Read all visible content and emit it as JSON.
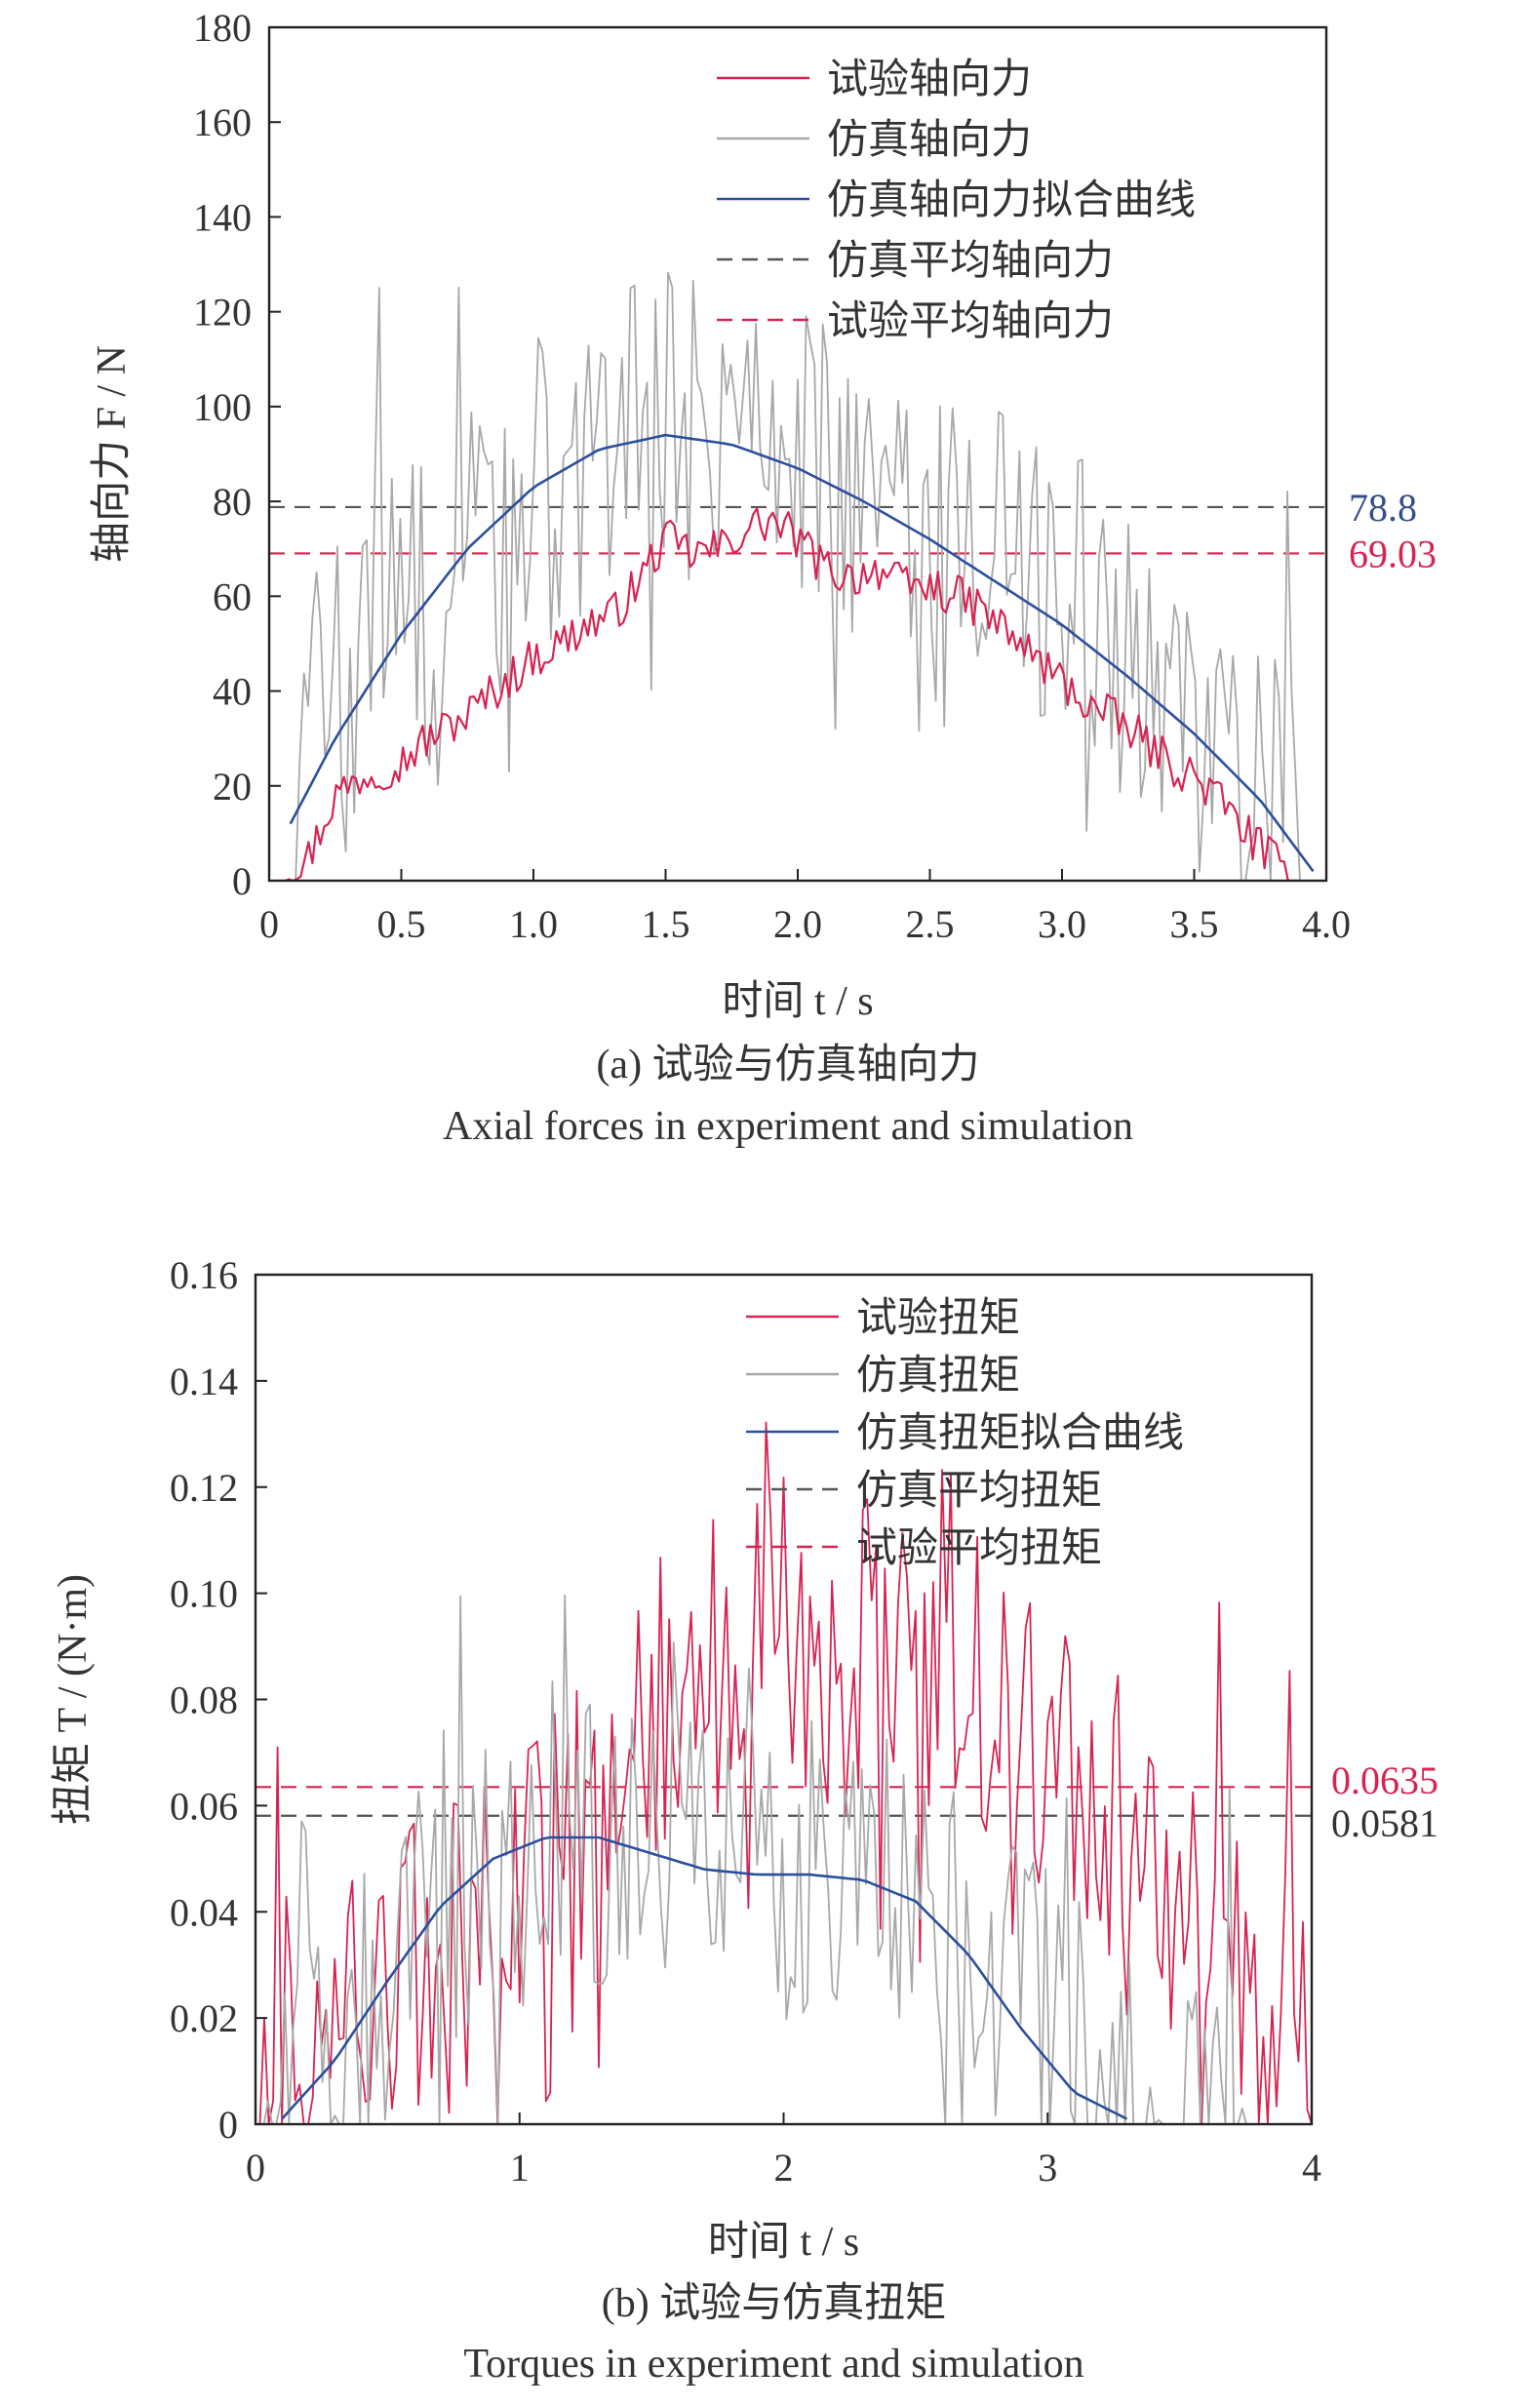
{
  "chart_data": [
    {
      "type": "line",
      "caption_cn": "(a) 试验与仿真轴向力",
      "caption_en": "Axial forces in experiment and simulation",
      "xlabel": "时间 t / s",
      "ylabel": "轴向力 F / N",
      "xlim": [
        0,
        4.0
      ],
      "ylim": [
        0,
        180
      ],
      "xticks": [
        0,
        0.5,
        1.0,
        1.5,
        2.0,
        2.5,
        3.0,
        3.5,
        4.0
      ],
      "xtick_labels": [
        "0",
        "0.5",
        "1.0",
        "1.5",
        "2.0",
        "2.5",
        "3.0",
        "3.5",
        "4.0"
      ],
      "yticks": [
        0,
        20,
        40,
        60,
        80,
        100,
        120,
        140,
        160,
        180
      ],
      "ytick_labels": [
        "0",
        "20",
        "40",
        "60",
        "80",
        "100",
        "120",
        "140",
        "160",
        "180"
      ],
      "legend_position": "top-right",
      "series": [
        {
          "name": "试验轴向力",
          "kind": "noisy",
          "color": "#d62452",
          "x": [
            0.03,
            0.15,
            0.25,
            0.35,
            0.5,
            0.6,
            0.75,
            0.85,
            1.0,
            1.1,
            1.2,
            1.3,
            1.4,
            1.45,
            1.5,
            1.6,
            1.7,
            1.8,
            1.9,
            2.0,
            2.1,
            2.2,
            2.3,
            2.4,
            2.5,
            2.6,
            2.7,
            2.8,
            2.9,
            3.0,
            3.1,
            3.2,
            3.3,
            3.4,
            3.5,
            3.6,
            3.7,
            3.8,
            3.9
          ],
          "values": [
            1,
            5,
            18,
            22,
            25,
            30,
            35,
            40,
            47,
            50,
            54,
            56,
            63,
            68,
            72,
            69,
            70,
            74,
            76,
            72,
            66,
            64,
            66,
            62,
            62,
            60,
            57,
            52,
            47,
            42,
            37,
            34,
            30,
            25,
            22,
            17,
            10,
            4,
            0
          ]
        },
        {
          "name": "仿真轴向力",
          "kind": "spiky",
          "color": "#a8a8a8",
          "x": [
            0.1,
            0.2,
            0.3,
            0.4,
            0.5,
            0.6,
            0.7,
            0.8,
            0.9,
            1.0,
            1.1,
            1.2,
            1.3,
            1.4,
            1.5,
            1.6,
            1.7,
            1.8,
            1.9,
            2.0,
            2.1,
            2.2,
            2.3,
            2.4,
            2.5,
            2.6,
            2.7,
            2.8,
            2.9,
            3.0,
            3.1,
            3.2,
            3.3,
            3.4,
            3.5,
            3.6,
            3.7,
            3.8,
            3.9
          ],
          "values": [
            25,
            45,
            35,
            55,
            60,
            55,
            65,
            75,
            70,
            85,
            75,
            90,
            85,
            95,
            100,
            95,
            90,
            100,
            95,
            95,
            90,
            85,
            80,
            75,
            70,
            70,
            75,
            65,
            60,
            60,
            55,
            50,
            45,
            40,
            35,
            30,
            25,
            20,
            12
          ]
        },
        {
          "name": "仿真轴向力拟合曲线",
          "kind": "smooth",
          "color": "#2b4f9e",
          "x": [
            0.08,
            0.25,
            0.5,
            0.75,
            1.0,
            1.25,
            1.5,
            1.75,
            2.0,
            2.25,
            2.5,
            2.75,
            3.0,
            3.25,
            3.5,
            3.75,
            3.95
          ],
          "values": [
            12,
            30,
            52,
            70,
            83,
            91,
            94,
            92,
            87,
            80,
            72,
            63,
            54,
            43,
            31,
            17,
            2
          ]
        },
        {
          "name": "仿真平均轴向力",
          "kind": "hline",
          "color": "#555555",
          "value": 78.8
        },
        {
          "name": "试验平均轴向力",
          "kind": "hline",
          "color": "#d62452",
          "value": 69.03
        }
      ],
      "reference_labels": [
        {
          "text": "78.8",
          "value": 78.8,
          "color": "#334e8a"
        },
        {
          "text": "69.03",
          "value": 69.03,
          "color": "#d62452"
        }
      ]
    },
    {
      "type": "line",
      "caption_cn": "(b) 试验与仿真扭矩",
      "caption_en": "Torques in experiment and simulation",
      "xlabel": "时间 t / s",
      "ylabel": "扭矩 T / (N·m)",
      "xlim": [
        0,
        4
      ],
      "ylim": [
        0,
        0.16
      ],
      "xticks": [
        0,
        1,
        2,
        3,
        4
      ],
      "xtick_labels": [
        "0",
        "1",
        "2",
        "3",
        "4"
      ],
      "yticks": [
        0,
        0.02,
        0.04,
        0.06,
        0.08,
        0.1,
        0.12,
        0.14,
        0.16
      ],
      "ytick_labels": [
        "0",
        "0.02",
        "0.04",
        "0.06",
        "0.08",
        "0.10",
        "0.12",
        "0.14",
        "0.16"
      ],
      "legend_position": "top-right",
      "series": [
        {
          "name": "试验扭矩",
          "kind": "spiky",
          "color": "#d62452",
          "x": [
            0.0,
            0.1,
            0.2,
            0.3,
            0.4,
            0.5,
            0.6,
            0.7,
            0.8,
            0.9,
            1.0,
            1.1,
            1.2,
            1.3,
            1.4,
            1.5,
            1.6,
            1.7,
            1.8,
            1.9,
            2.0,
            2.1,
            2.2,
            2.3,
            2.4,
            2.5,
            2.6,
            2.7,
            2.8,
            2.9,
            3.0,
            3.1,
            3.2,
            3.3,
            3.4,
            3.5,
            3.6,
            3.7,
            3.8,
            3.9,
            4.0
          ],
          "values": [
            0.008,
            0.01,
            0.015,
            0.02,
            0.025,
            0.025,
            0.03,
            0.03,
            0.035,
            0.04,
            0.045,
            0.05,
            0.055,
            0.06,
            0.07,
            0.075,
            0.085,
            0.09,
            0.095,
            0.09,
            0.09,
            0.09,
            0.085,
            0.09,
            0.095,
            0.09,
            0.085,
            0.08,
            0.075,
            0.075,
            0.07,
            0.065,
            0.06,
            0.055,
            0.05,
            0.045,
            0.04,
            0.035,
            0.03,
            0.025,
            0.01
          ]
        },
        {
          "name": "仿真扭矩",
          "kind": "spiky",
          "color": "#a8a8a8",
          "x": [
            0.0,
            0.1,
            0.2,
            0.3,
            0.4,
            0.5,
            0.6,
            0.7,
            0.8,
            0.9,
            1.0,
            1.1,
            1.2,
            1.3,
            1.4,
            1.5,
            1.6,
            1.7,
            1.8,
            1.9,
            2.0,
            2.1,
            2.2,
            2.3,
            2.4,
            2.5,
            2.6,
            2.7,
            2.8,
            2.9,
            3.0,
            3.1,
            3.2,
            3.3,
            3.4,
            3.5,
            3.6,
            3.7,
            3.8
          ],
          "values": [
            0.0,
            0.005,
            0.01,
            0.015,
            0.02,
            0.025,
            0.035,
            0.04,
            0.045,
            0.05,
            0.055,
            0.055,
            0.055,
            0.053,
            0.05,
            0.05,
            0.05,
            0.048,
            0.048,
            0.047,
            0.047,
            0.047,
            0.047,
            0.047,
            0.046,
            0.044,
            0.04,
            0.035,
            0.03,
            0.025,
            0.02,
            0.014,
            0.008,
            0.004,
            0.002,
            0.001,
            0.001,
            0.001,
            0.0
          ]
        },
        {
          "name": "仿真扭矩拟合曲线",
          "kind": "smooth",
          "color": "#2b4f9e",
          "x": [
            0.1,
            0.3,
            0.5,
            0.7,
            0.9,
            1.1,
            1.3,
            1.5,
            1.7,
            1.9,
            2.1,
            2.3,
            2.5,
            2.7,
            2.9,
            3.1,
            3.3
          ],
          "values": [
            0.001,
            0.012,
            0.027,
            0.041,
            0.05,
            0.054,
            0.054,
            0.051,
            0.048,
            0.047,
            0.047,
            0.046,
            0.042,
            0.032,
            0.018,
            0.006,
            0.001
          ]
        },
        {
          "name": "仿真平均扭矩",
          "kind": "hline",
          "color": "#555555",
          "value": 0.0581
        },
        {
          "name": "试验平均扭矩",
          "kind": "hline",
          "color": "#d62452",
          "value": 0.0635
        }
      ],
      "reference_labels": [
        {
          "text": "0.0635",
          "value": 0.0635,
          "color": "#d62452"
        },
        {
          "text": "0.0581",
          "value": 0.0581,
          "color": "#333333"
        }
      ]
    }
  ]
}
